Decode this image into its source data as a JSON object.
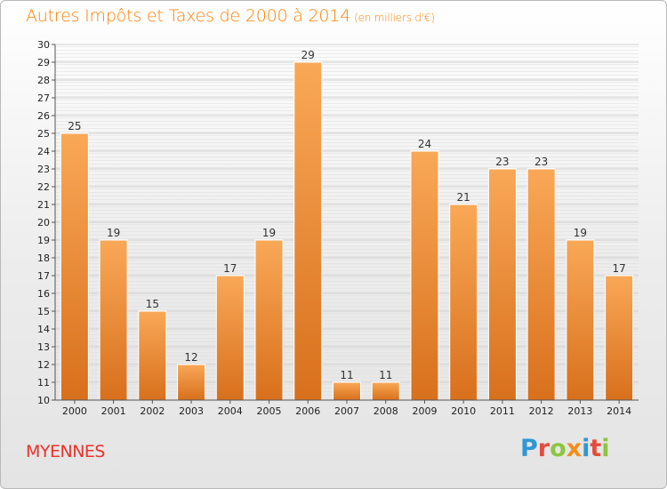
{
  "title": "Autres Impôts et Taxes de 2000 à 2014",
  "subtitle": "(en milliers d'€)",
  "commune": "MYENNES",
  "logo": {
    "letters": [
      "P",
      "r",
      "o",
      "x",
      "i",
      "t",
      "i"
    ],
    "colors": [
      "#2f97d6",
      "#e64b3c",
      "#8cc63f",
      "#f28e1c",
      "#2f97d6",
      "#e64b3c",
      "#8cc63f"
    ]
  },
  "colors": {
    "bar_light": "#f9a857",
    "bar_dark": "#d8701c",
    "title": "#ff7f00",
    "commune": "#e8322b"
  },
  "chart_data": {
    "type": "bar",
    "title": "Autres Impôts et Taxes de 2000 à 2014",
    "subtitle": "(en milliers d'€)",
    "categories": [
      "2000",
      "2001",
      "2002",
      "2003",
      "2004",
      "2005",
      "2006",
      "2007",
      "2008",
      "2009",
      "2010",
      "2011",
      "2012",
      "2013",
      "2014"
    ],
    "values": [
      25,
      19,
      15,
      12,
      17,
      19,
      29,
      11,
      11,
      24,
      21,
      23,
      23,
      19,
      17
    ],
    "ylim": [
      10,
      30
    ],
    "yticks": [
      10,
      11,
      12,
      13,
      14,
      15,
      16,
      17,
      18,
      19,
      20,
      21,
      22,
      23,
      24,
      25,
      26,
      27,
      28,
      29,
      30
    ],
    "grid": true,
    "xlabel": "",
    "ylabel": ""
  }
}
